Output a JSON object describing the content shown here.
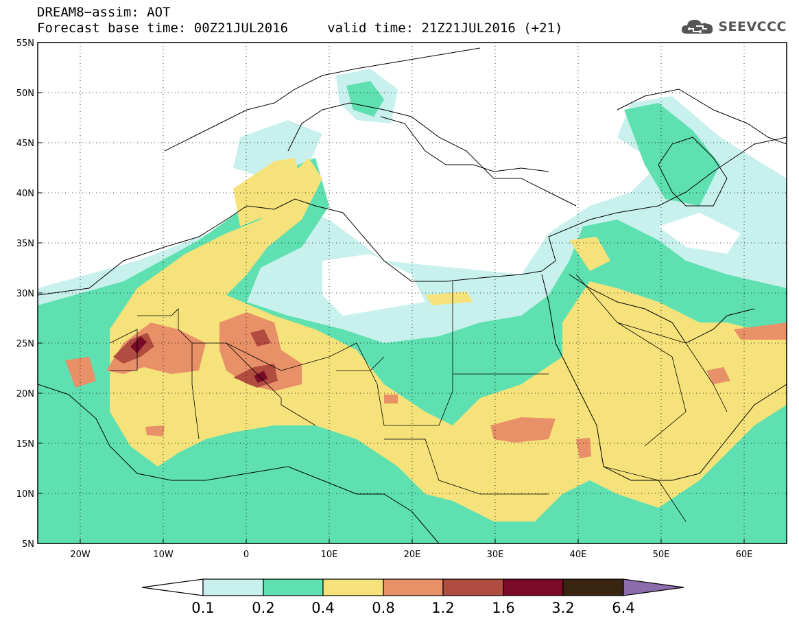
{
  "header": {
    "line1": "DREAM8−assim: AOT",
    "line2": "Forecast base time: 00Z21JUL2016     valid time: 21Z21JUL2016 (+21)"
  },
  "logo": {
    "text": "SEEVCCC",
    "icon": "cloud-icon"
  },
  "map": {
    "lat_labels": [
      "55N",
      "50N",
      "45N",
      "40N",
      "35N",
      "30N",
      "25N",
      "20N",
      "15N",
      "10N",
      "5N"
    ],
    "lon_labels": [
      "20W",
      "10W",
      "0",
      "10E",
      "20E",
      "30E",
      "40E",
      "50E",
      "60E"
    ],
    "lat_range": [
      5,
      55
    ],
    "lon_range": [
      -25,
      65
    ],
    "grid": "dotted"
  },
  "colorbar": {
    "levels": [
      "0.1",
      "0.2",
      "0.4",
      "0.8",
      "1.2",
      "1.6",
      "3.2",
      "6.4"
    ],
    "colors": [
      "#ffffff",
      "#c8f0ec",
      "#5ee0b0",
      "#f5e27a",
      "#e89068",
      "#b04c40",
      "#7a0a28",
      "#3a2412",
      "#8c6cac"
    ]
  }
}
